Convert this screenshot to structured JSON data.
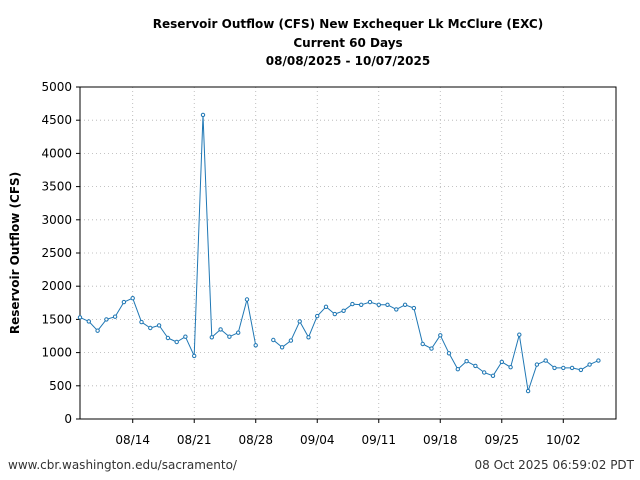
{
  "chart_data": {
    "type": "line",
    "title_lines": [
      "Reservoir Outflow (CFS) New Exchequer Lk McClure (EXC)",
      "Current 60 Days",
      "08/08/2025 - 10/07/2025"
    ],
    "xlabel": "",
    "ylabel": "Reservoir Outflow (CFS)",
    "x_range": [
      "08/08/2025",
      "10/08/2025"
    ],
    "ylim": [
      0,
      5000
    ],
    "y_ticks": [
      0,
      500,
      1000,
      1500,
      2000,
      2500,
      3000,
      3500,
      4000,
      4500,
      5000
    ],
    "x_ticks": [
      {
        "date": "2025-08-14",
        "label": "08/14"
      },
      {
        "date": "2025-08-21",
        "label": "08/21"
      },
      {
        "date": "2025-08-28",
        "label": "08/28"
      },
      {
        "date": "2025-09-04",
        "label": "09/04"
      },
      {
        "date": "2025-09-11",
        "label": "09/11"
      },
      {
        "date": "2025-09-18",
        "label": "09/18"
      },
      {
        "date": "2025-09-25",
        "label": "09/25"
      },
      {
        "date": "2025-10-02",
        "label": "10/02"
      }
    ],
    "grid": true,
    "line_color": "#1f77b4",
    "series": [
      {
        "points": [
          {
            "date": "2025-08-08",
            "value": 1530
          },
          {
            "date": "2025-08-09",
            "value": 1470
          },
          {
            "date": "2025-08-10",
            "value": 1330
          },
          {
            "date": "2025-08-11",
            "value": 1500
          },
          {
            "date": "2025-08-12",
            "value": 1540
          },
          {
            "date": "2025-08-13",
            "value": 1760
          },
          {
            "date": "2025-08-14",
            "value": 1820
          },
          {
            "date": "2025-08-15",
            "value": 1460
          },
          {
            "date": "2025-08-16",
            "value": 1370
          },
          {
            "date": "2025-08-17",
            "value": 1410
          },
          {
            "date": "2025-08-18",
            "value": 1220
          },
          {
            "date": "2025-08-19",
            "value": 1160
          },
          {
            "date": "2025-08-20",
            "value": 1240
          },
          {
            "date": "2025-08-21",
            "value": 950
          },
          {
            "date": "2025-08-22",
            "value": 4580
          },
          {
            "date": "2025-08-23",
            "value": 1230
          },
          {
            "date": "2025-08-24",
            "value": 1350
          },
          {
            "date": "2025-08-25",
            "value": 1240
          },
          {
            "date": "2025-08-26",
            "value": 1300
          },
          {
            "date": "2025-08-27",
            "value": 1800
          },
          {
            "date": "2025-08-28",
            "value": 1110
          },
          {
            "date": "2025-08-29",
            "value": null
          },
          {
            "date": "2025-08-30",
            "value": 1190
          },
          {
            "date": "2025-08-31",
            "value": 1080
          },
          {
            "date": "2025-09-01",
            "value": 1180
          },
          {
            "date": "2025-09-02",
            "value": 1470
          },
          {
            "date": "2025-09-03",
            "value": 1230
          },
          {
            "date": "2025-09-04",
            "value": 1550
          },
          {
            "date": "2025-09-05",
            "value": 1690
          },
          {
            "date": "2025-09-06",
            "value": 1580
          },
          {
            "date": "2025-09-07",
            "value": 1630
          },
          {
            "date": "2025-09-08",
            "value": 1730
          },
          {
            "date": "2025-09-09",
            "value": 1720
          },
          {
            "date": "2025-09-10",
            "value": 1760
          },
          {
            "date": "2025-09-11",
            "value": 1720
          },
          {
            "date": "2025-09-12",
            "value": 1720
          },
          {
            "date": "2025-09-13",
            "value": 1650
          },
          {
            "date": "2025-09-14",
            "value": 1720
          },
          {
            "date": "2025-09-15",
            "value": 1670
          },
          {
            "date": "2025-09-16",
            "value": 1130
          },
          {
            "date": "2025-09-17",
            "value": 1060
          },
          {
            "date": "2025-09-18",
            "value": 1260
          },
          {
            "date": "2025-09-19",
            "value": 990
          },
          {
            "date": "2025-09-20",
            "value": 750
          },
          {
            "date": "2025-09-21",
            "value": 870
          },
          {
            "date": "2025-09-22",
            "value": 800
          },
          {
            "date": "2025-09-23",
            "value": 700
          },
          {
            "date": "2025-09-24",
            "value": 650
          },
          {
            "date": "2025-09-25",
            "value": 860
          },
          {
            "date": "2025-09-26",
            "value": 780
          },
          {
            "date": "2025-09-27",
            "value": 1270
          },
          {
            "date": "2025-09-28",
            "value": 420
          },
          {
            "date": "2025-09-29",
            "value": 820
          },
          {
            "date": "2025-09-30",
            "value": 880
          },
          {
            "date": "2025-10-01",
            "value": 770
          },
          {
            "date": "2025-10-02",
            "value": 770
          },
          {
            "date": "2025-10-03",
            "value": 770
          },
          {
            "date": "2025-10-04",
            "value": 740
          },
          {
            "date": "2025-10-05",
            "value": 820
          },
          {
            "date": "2025-10-06",
            "value": 880
          }
        ]
      }
    ]
  },
  "footer": {
    "source_text": "www.cbr.washington.edu/sacramento/",
    "timestamp_text": "08 Oct 2025 06:59:02 PDT"
  }
}
